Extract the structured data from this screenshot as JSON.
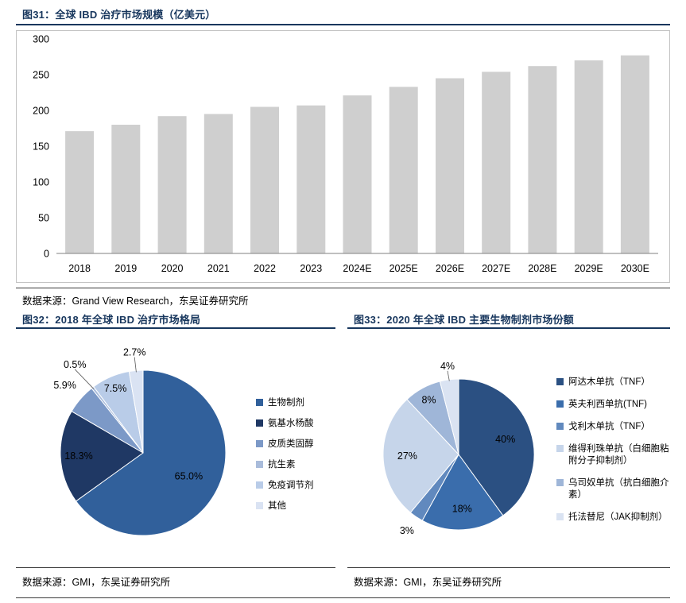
{
  "figures": [
    {
      "title": "图31：全球 IBD 治疗市场规模（亿美元）",
      "source": "数据来源：Grand View Research，东吴证券研究所"
    },
    {
      "title": "图32：2018 年全球 IBD 治疗市场格局",
      "source": "数据来源：GMI，东吴证券研究所"
    },
    {
      "title": "图33：2020 年全球 IBD 主要生物制剂市场份额",
      "source": "数据来源：GMI，东吴证券研究所"
    }
  ],
  "colors": {
    "title_navy": "#17365D",
    "bar_gray": "#CFCFCF",
    "rule_dark": "#3a3a3a",
    "axis_gray": "#808080"
  },
  "chart_data": [
    {
      "id": "fig31",
      "type": "bar",
      "title": "全球 IBD 治疗市场规模（亿美元）",
      "categories": [
        "2018",
        "2019",
        "2020",
        "2021",
        "2022",
        "2023",
        "2024E",
        "2025E",
        "2026E",
        "2027E",
        "2028E",
        "2029E",
        "2030E"
      ],
      "values": [
        171,
        180,
        192,
        195,
        205,
        207,
        221,
        233,
        245,
        254,
        262,
        270,
        277
      ],
      "xlabel": "",
      "ylabel": "",
      "ylim": [
        0,
        300
      ],
      "yticks": [
        0,
        50,
        100,
        150,
        200,
        250,
        300
      ],
      "bar_color": "#CFCFCF",
      "grid": false,
      "legend": "none"
    },
    {
      "id": "fig32",
      "type": "pie",
      "title": "2018 年全球 IBD 治疗市场格局",
      "legend_position": "right",
      "slices": [
        {
          "name": "生物制剂",
          "value": 65.0,
          "label": "65.0%",
          "color": "#31609B",
          "lf": 0.62
        },
        {
          "name": "氨基水杨酸",
          "value": 18.3,
          "label": "18.3%",
          "color": "#1F3864",
          "lf": 0.78
        },
        {
          "name": "皮质类固醇",
          "value": 5.9,
          "label": "5.9%",
          "color": "#7C99C7",
          "lf": 1.25,
          "out": true
        },
        {
          "name": "抗生素",
          "value": 0.5,
          "label": "0.5%",
          "color": "#A9BCDB",
          "lf": 1.35,
          "out": true,
          "leader": true
        },
        {
          "name": "免疫调节剂",
          "value": 7.5,
          "label": "7.5%",
          "color": "#B9CCE8",
          "lf": 0.85
        },
        {
          "name": "其他",
          "value": 2.7,
          "label": "2.7%",
          "color": "#DAE3F3",
          "lf": 1.22,
          "out": true,
          "leader": true
        }
      ]
    },
    {
      "id": "fig33",
      "type": "pie",
      "title": "2020 年全球 IBD 主要生物制剂市场份额",
      "legend_position": "right",
      "slices": [
        {
          "name": "阿达木单抗（TNF）",
          "value": 40,
          "label": "40%",
          "color": "#2B5082",
          "lf": 0.65
        },
        {
          "name": "英夫利西单抗(TNF)",
          "value": 18,
          "label": "18%",
          "color": "#3A6DAC",
          "lf": 0.72
        },
        {
          "name": "戈利木单抗（TNF）",
          "value": 3,
          "label": "3%",
          "color": "#6189BE",
          "lf": 1.22,
          "out": true
        },
        {
          "name": "维得利珠单抗（白细胞粘附分子抑制剂）",
          "value": 27,
          "label": "27%",
          "color": "#C6D5EA",
          "lf": 0.68
        },
        {
          "name": "乌司奴单抗（抗白细胞介素）",
          "value": 8,
          "label": "8%",
          "color": "#9FB6D8",
          "lf": 0.82
        },
        {
          "name": "托法替尼（JAK抑制剂）",
          "value": 4,
          "label": "4%",
          "color": "#DAE3F2",
          "lf": 1.18,
          "out": true,
          "leader": true
        }
      ]
    }
  ]
}
